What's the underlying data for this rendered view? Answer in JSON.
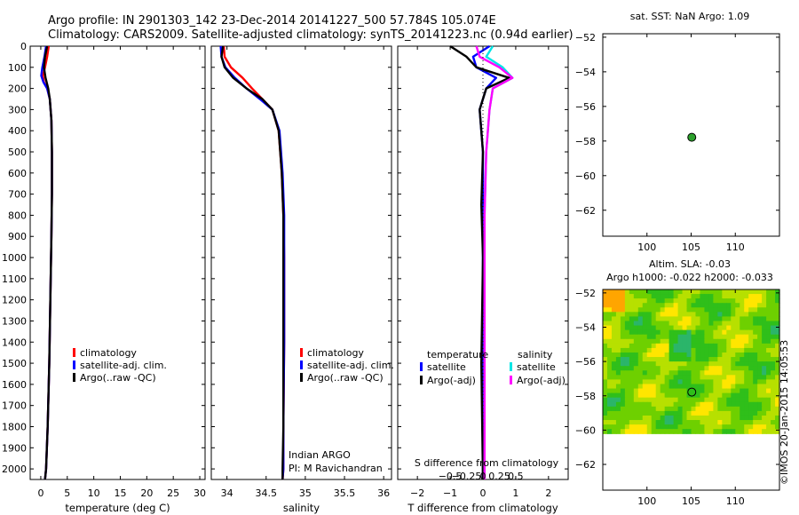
{
  "title": {
    "line1": "Argo profile: IN 2901303_142 23-Dec-2014 20141227_500 57.784S 105.074E",
    "line2": "Climatology: CARS2009. Satellite-adjusted climatology: synTS_20141223.nc (0.94d earlier)"
  },
  "colors": {
    "climatology": "#ff0000",
    "satellite": "#0000ff",
    "argo": "#000000",
    "sat_sal": "#00e5e5",
    "argo_sal": "#ff00ff",
    "marker": "#2ca02c"
  },
  "chart_data": [
    {
      "id": "temperature",
      "type": "line",
      "xlabel": "temperature (deg C)",
      "xlim": [
        -2,
        31
      ],
      "ylim": [
        0,
        2050
      ],
      "xticks": [
        0,
        5,
        10,
        15,
        20,
        25,
        30
      ],
      "yticks": [
        0,
        100,
        200,
        300,
        400,
        500,
        600,
        700,
        800,
        900,
        1000,
        1100,
        1200,
        1300,
        1400,
        1500,
        1600,
        1700,
        1800,
        1900,
        2000
      ],
      "legend": [
        "climatology",
        "satellite-adj. clim.",
        "Argo(..raw -QC)"
      ],
      "series": [
        {
          "name": "climatology",
          "color": "#ff0000",
          "x": [
            1.5,
            1.2,
            0.8,
            0.4,
            0.6,
            1.2,
            1.7,
            2.0,
            2.1,
            2.1,
            2.0,
            1.8,
            1.6,
            1.3,
            1.0,
            0.8
          ],
          "y": [
            0,
            50,
            100,
            140,
            170,
            200,
            250,
            350,
            500,
            700,
            900,
            1200,
            1500,
            1800,
            2000,
            2050
          ]
        },
        {
          "name": "satellite-adj. clim.",
          "color": "#0000ff",
          "x": [
            1.0,
            0.7,
            0.3,
            0.1,
            0.5,
            1.2,
            1.7,
            2.0,
            2.1,
            2.1,
            2.0,
            1.8,
            1.6,
            1.3,
            1.0,
            0.8
          ],
          "y": [
            0,
            50,
            100,
            140,
            170,
            200,
            250,
            350,
            500,
            700,
            900,
            1200,
            1500,
            1800,
            2000,
            2050
          ]
        },
        {
          "name": "Argo(..raw -QC)",
          "color": "#000000",
          "x": [
            1.2,
            0.8,
            0.6,
            0.9,
            1.4,
            1.7,
            2.0,
            2.1,
            2.1,
            2.0,
            1.8,
            1.6,
            1.3,
            1.0,
            0.8
          ],
          "y": [
            0,
            50,
            100,
            150,
            200,
            250,
            350,
            500,
            700,
            900,
            1200,
            1500,
            1800,
            2000,
            2050
          ]
        }
      ]
    },
    {
      "id": "salinity",
      "type": "line",
      "xlabel": "salinity",
      "xlim": [
        33.8,
        36.1
      ],
      "ylim": [
        0,
        2050
      ],
      "xticks": [
        34,
        34.5,
        35,
        35.5,
        36
      ],
      "xticklabels": [
        "34",
        "34.5",
        "35",
        "35.5",
        "36"
      ],
      "legend": [
        "climatology",
        "satellite-adj. clim.",
        "Argo(..raw -QC)"
      ],
      "note1": "Indian ARGO",
      "note2": "PI: M Ravichandran",
      "series": [
        {
          "name": "climatology",
          "color": "#ff0000",
          "x": [
            33.96,
            33.97,
            34.05,
            34.2,
            34.32,
            34.45,
            34.58,
            34.66,
            34.7,
            34.72,
            34.73,
            34.73,
            34.72,
            34.72,
            34.71
          ],
          "y": [
            0,
            50,
            100,
            150,
            200,
            250,
            300,
            400,
            600,
            800,
            1000,
            1400,
            1800,
            2000,
            2050
          ]
        },
        {
          "name": "satellite-adj. clim.",
          "color": "#0000ff",
          "x": [
            33.92,
            33.93,
            33.98,
            34.1,
            34.25,
            34.42,
            34.58,
            34.67,
            34.71,
            34.73,
            34.73,
            34.73,
            34.72,
            34.72,
            34.71
          ],
          "y": [
            0,
            50,
            100,
            150,
            200,
            250,
            300,
            400,
            600,
            800,
            1000,
            1400,
            1800,
            2000,
            2050
          ]
        },
        {
          "name": "Argo(..raw -QC)",
          "color": "#000000",
          "x": [
            33.95,
            33.93,
            33.97,
            34.08,
            34.25,
            34.45,
            34.58,
            34.66,
            34.7,
            34.72,
            34.72,
            34.72,
            34.72,
            34.71,
            34.71
          ],
          "y": [
            0,
            50,
            100,
            150,
            200,
            250,
            300,
            400,
            600,
            800,
            1000,
            1400,
            1800,
            2000,
            2050
          ]
        }
      ]
    },
    {
      "id": "difference",
      "type": "line",
      "xlabel": "T difference from climatology",
      "xlabel_top": "S difference from climatology",
      "xlim": [
        -2.6,
        2.6
      ],
      "ylim": [
        0,
        2050
      ],
      "xticks": [
        -2,
        -1,
        0,
        1,
        2
      ],
      "xticklabels": [
        "−2",
        "−1",
        "0",
        "1",
        "2"
      ],
      "sticklabels": [
        "−0.5",
        "−0.25",
        "0",
        "0.25",
        "0.5"
      ],
      "legend_temperature_title": "temperature",
      "legend_salinity_title": "salinity",
      "legend_temperature": [
        "satellite",
        "Argo(-adj)"
      ],
      "legend_salinity": [
        "satellite",
        "Argo(-adj)"
      ],
      "series": [
        {
          "name": "T satellite",
          "color": "#0000ff",
          "x": [
            0.2,
            -0.3,
            -0.2,
            0.4,
            0.1,
            -0.1,
            0.0,
            0.0,
            0.0,
            0.0
          ],
          "y": [
            0,
            50,
            100,
            150,
            200,
            300,
            500,
            800,
            1400,
            2050
          ]
        },
        {
          "name": "T Argo(-adj)",
          "color": "#000000",
          "x": [
            -1.0,
            -0.5,
            -0.2,
            0.8,
            0.1,
            -0.1,
            0.0,
            -0.05,
            0.0,
            -0.05,
            0.0
          ],
          "y": [
            0,
            50,
            100,
            150,
            200,
            300,
            500,
            750,
            1000,
            1500,
            2050
          ]
        },
        {
          "name": "S satellite",
          "color": "#00e5e5",
          "x": [
            0.3,
            0.1,
            0.6,
            0.9,
            0.3,
            0.2,
            0.1,
            0.05,
            0.05,
            0.05
          ],
          "y": [
            0,
            50,
            100,
            150,
            200,
            300,
            500,
            800,
            1400,
            2050
          ]
        },
        {
          "name": "S Argo(-adj)",
          "color": "#ff00ff",
          "x": [
            -0.2,
            -0.1,
            0.5,
            0.9,
            0.3,
            0.2,
            0.1,
            0.05,
            0.05,
            0.05
          ],
          "y": [
            0,
            50,
            100,
            150,
            200,
            300,
            500,
            800,
            1400,
            2050
          ]
        }
      ]
    },
    {
      "id": "sst_map",
      "type": "scatter",
      "title": "sat. SST: NaN Argo: 1.09",
      "xlim": [
        95,
        115
      ],
      "ylim": [
        -63.5,
        -51.8
      ],
      "xticks": [
        100,
        105,
        110
      ],
      "yticks": [
        -52,
        -54,
        -56,
        -58,
        -60,
        -62
      ],
      "yticklabels": [
        "−52",
        "−54",
        "−56",
        "−58",
        "−60",
        "−62"
      ],
      "points": [
        {
          "lon": 105.074,
          "lat": -57.784
        }
      ]
    },
    {
      "id": "sla_map",
      "type": "heatmap",
      "title1": "Altim. SLA: -0.03",
      "title2": "Argo h1000: -0.022 h2000: -0.033",
      "xlim": [
        95,
        115
      ],
      "ylim": [
        -63.5,
        -51.8
      ],
      "data_ylim": [
        -60.2,
        -51.8
      ],
      "xticks": [
        100,
        105,
        110
      ],
      "yticks": [
        -52,
        -54,
        -56,
        -58,
        -60,
        -62
      ],
      "yticklabels": [
        "−52",
        "−54",
        "−56",
        "−58",
        "−60",
        "−62"
      ],
      "points": [
        {
          "lon": 105.074,
          "lat": -57.784
        }
      ]
    }
  ],
  "footer": "©IMOS 20-Jan-2015 14:05:53"
}
